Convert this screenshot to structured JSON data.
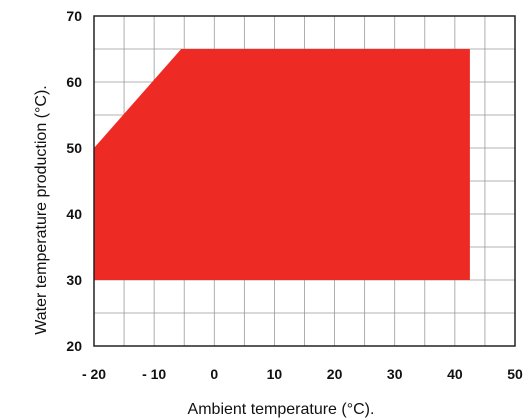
{
  "chart_data": {
    "type": "area",
    "xlabel": "Ambient temperature (°C).",
    "ylabel": "Water temperature production (°C).",
    "xlim": [
      -20,
      50
    ],
    "ylim": [
      20,
      70
    ],
    "x_ticks": [
      -20,
      -10,
      0,
      10,
      20,
      30,
      40,
      50
    ],
    "y_ticks": [
      20,
      30,
      40,
      50,
      60,
      70
    ],
    "x_tick_labels": [
      "- 20",
      "- 10",
      "0",
      "10",
      "20",
      "30",
      "40",
      "50"
    ],
    "y_tick_labels": [
      "20",
      "30",
      "40",
      "50",
      "60",
      "70"
    ],
    "grid": true,
    "grid_minor_step_x": 5,
    "grid_minor_step_y": 5,
    "region": {
      "color": "#ee2a24",
      "points": [
        [
          -20,
          30
        ],
        [
          -20,
          50
        ],
        [
          -5.5,
          65
        ],
        [
          42.5,
          65
        ],
        [
          42.5,
          30
        ]
      ]
    }
  }
}
